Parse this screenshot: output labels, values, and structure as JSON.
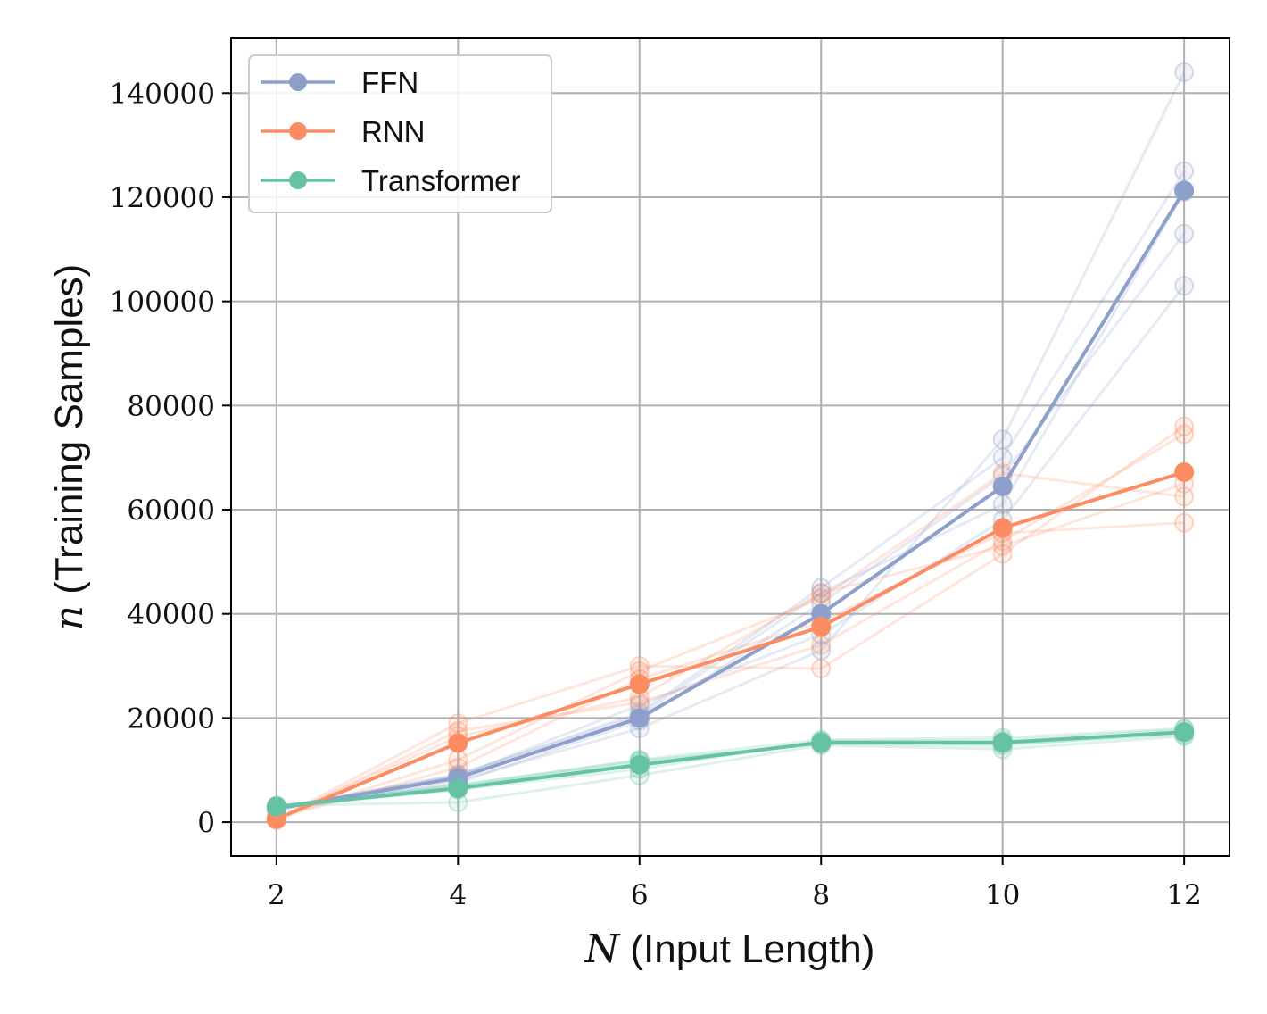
{
  "chart_data": {
    "type": "line",
    "x": [
      2,
      4,
      6,
      8,
      10,
      12
    ],
    "xlabel": {
      "math": "N",
      "text": "(Input Length)"
    },
    "ylabel": {
      "math": "n",
      "text": "(Training Samples)"
    },
    "xticks": [
      "2",
      "4",
      "6",
      "8",
      "10",
      "12"
    ],
    "yticks": [
      "0",
      "20000",
      "40000",
      "60000",
      "80000",
      "100000",
      "120000",
      "140000"
    ],
    "ytick_values": [
      0,
      20000,
      40000,
      60000,
      80000,
      100000,
      120000,
      140000
    ],
    "xlim": [
      1.5,
      12.5
    ],
    "ylim": [
      -6500,
      150500
    ],
    "grid": true,
    "legend_position": "top-left",
    "series": [
      {
        "name": "FFN",
        "color": "#8DA0CB",
        "values": [
          2600,
          8500,
          20000,
          40000,
          64500,
          121300
        ],
        "runs": [
          [
            2500,
            8000,
            18000,
            33000,
            73500,
            144000
          ],
          [
            2700,
            9000,
            21000,
            45000,
            70000,
            125000
          ],
          [
            2400,
            7500,
            19500,
            42000,
            66500,
            113000
          ],
          [
            2800,
            8800,
            22500,
            36000,
            58000,
            103000
          ],
          [
            2600,
            9200,
            20500,
            44000,
            61000,
            121000
          ]
        ]
      },
      {
        "name": "RNN",
        "color": "#FC8D62",
        "values": [
          600,
          15200,
          26500,
          37500,
          56500,
          67200
        ],
        "runs": [
          [
            500,
            19000,
            30000,
            29500,
            51500,
            76000
          ],
          [
            800,
            12000,
            29000,
            43000,
            67000,
            62500
          ],
          [
            400,
            17500,
            23000,
            34000,
            54000,
            74500
          ],
          [
            700,
            10500,
            27500,
            38500,
            55500,
            57500
          ],
          [
            600,
            16500,
            24000,
            44000,
            53000,
            65000
          ]
        ]
      },
      {
        "name": "Transformer",
        "color": "#66C2A5",
        "values": [
          3000,
          6500,
          11000,
          15300,
          15300,
          17300
        ],
        "runs": [
          [
            3200,
            3800,
            9000,
            14800,
            14000,
            16500
          ],
          [
            2900,
            7000,
            12000,
            15800,
            16200,
            18000
          ],
          [
            3100,
            6800,
            11500,
            15200,
            15000,
            16800
          ],
          [
            2800,
            6200,
            10200,
            15600,
            15700,
            17800
          ],
          [
            3000,
            7200,
            11800,
            15000,
            14700,
            17200
          ]
        ]
      }
    ]
  }
}
